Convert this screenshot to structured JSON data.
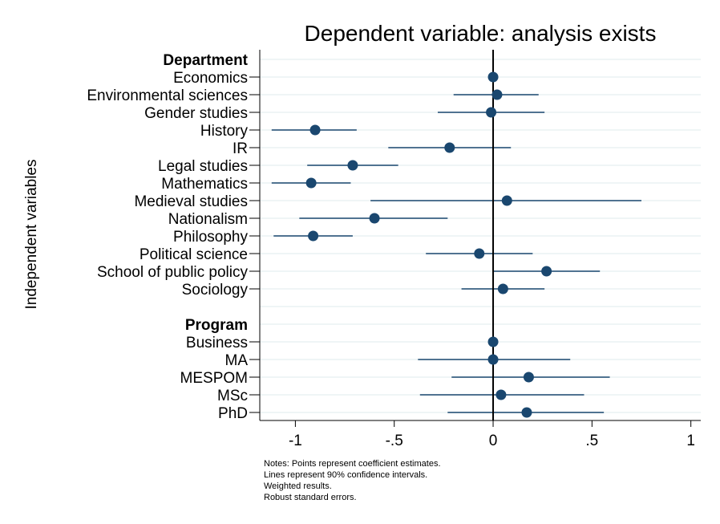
{
  "chart_data": {
    "type": "scatter",
    "title": "Dependent variable: analysis exists",
    "ylabel": "Independent variables",
    "xlabel": "",
    "xlim": [
      -1.18,
      1.05
    ],
    "xticks": [
      {
        "value": -1,
        "label": "-1"
      },
      {
        "value": -0.5,
        "label": "-.5"
      },
      {
        "value": 0,
        "label": "0"
      },
      {
        "value": 0.5,
        "label": ".5"
      },
      {
        "value": 1,
        "label": "1"
      }
    ],
    "reference_line": 0,
    "grid": "horizontal",
    "rows": [
      {
        "label": "Department",
        "header": true
      },
      {
        "label": "Economics",
        "estimate": 0.0,
        "ci": [
          0.0,
          0.0
        ]
      },
      {
        "label": "Environmental sciences",
        "estimate": 0.02,
        "ci": [
          -0.2,
          0.23
        ]
      },
      {
        "label": "Gender studies",
        "estimate": -0.01,
        "ci": [
          -0.28,
          0.26
        ]
      },
      {
        "label": "History",
        "estimate": -0.9,
        "ci": [
          -1.12,
          -0.69
        ]
      },
      {
        "label": "IR",
        "estimate": -0.22,
        "ci": [
          -0.53,
          0.09
        ]
      },
      {
        "label": "Legal studies",
        "estimate": -0.71,
        "ci": [
          -0.94,
          -0.48
        ]
      },
      {
        "label": "Mathematics",
        "estimate": -0.92,
        "ci": [
          -1.12,
          -0.72
        ]
      },
      {
        "label": "Medieval studies",
        "estimate": 0.07,
        "ci": [
          -0.62,
          0.75
        ]
      },
      {
        "label": "Nationalism",
        "estimate": -0.6,
        "ci": [
          -0.98,
          -0.23
        ]
      },
      {
        "label": "Philosophy",
        "estimate": -0.91,
        "ci": [
          -1.11,
          -0.71
        ]
      },
      {
        "label": "Political science",
        "estimate": -0.07,
        "ci": [
          -0.34,
          0.2
        ]
      },
      {
        "label": "School of public policy",
        "estimate": 0.27,
        "ci": [
          0.0,
          0.54
        ]
      },
      {
        "label": "Sociology",
        "estimate": 0.05,
        "ci": [
          -0.16,
          0.26
        ]
      },
      {
        "label": "",
        "spacer": true
      },
      {
        "label": "Program",
        "header": true
      },
      {
        "label": "Business",
        "estimate": 0.0,
        "ci": [
          0.0,
          0.0
        ]
      },
      {
        "label": "MA",
        "estimate": 0.0,
        "ci": [
          -0.38,
          0.39
        ]
      },
      {
        "label": "MESPOM",
        "estimate": 0.18,
        "ci": [
          -0.21,
          0.59
        ]
      },
      {
        "label": "MSc",
        "estimate": 0.04,
        "ci": [
          -0.37,
          0.46
        ]
      },
      {
        "label": "PhD",
        "estimate": 0.17,
        "ci": [
          -0.23,
          0.56
        ]
      }
    ],
    "notes": [
      "Notes: Points represent coefficient estimates.",
      "Lines represent 90% confidence intervals.",
      "Weighted results.",
      "Robust standard errors."
    ],
    "colors": {
      "marker": "#1a476f",
      "grid": "#eaf2f3",
      "axis": "#000000"
    }
  }
}
